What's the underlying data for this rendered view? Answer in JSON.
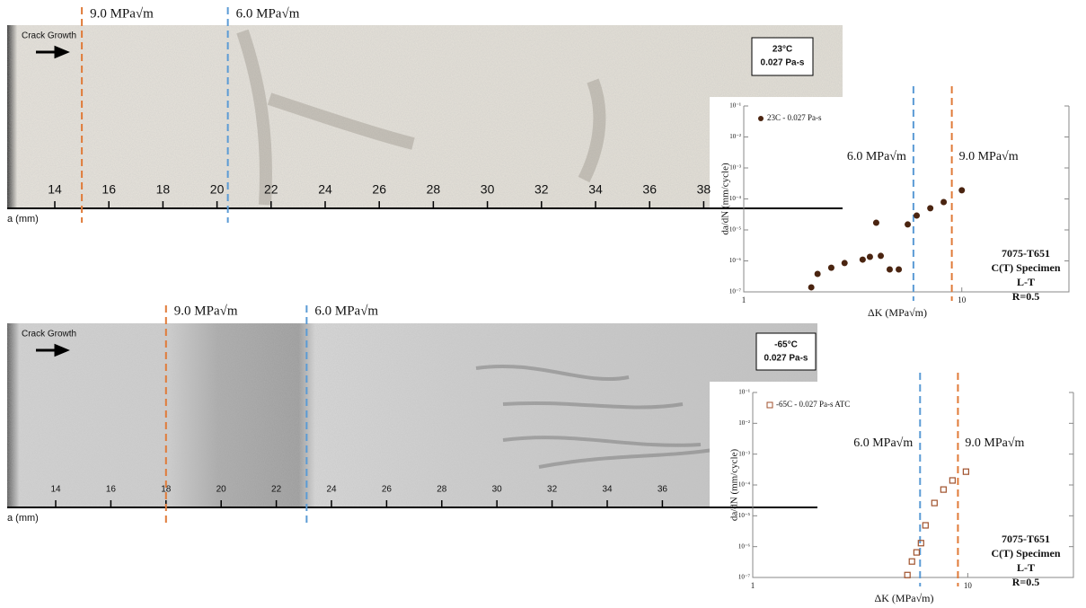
{
  "panels": [
    {
      "crack_label": "Crack Growth",
      "axis_label": "a (mm)",
      "ticks": [
        14,
        16,
        18,
        20,
        22,
        24,
        26,
        28,
        30,
        32,
        34,
        36,
        38
      ],
      "markers": [
        {
          "label": "9.0 MPa√m",
          "a": 15.0,
          "color": "#e07b39"
        },
        {
          "label": "6.0 MPa√m",
          "a": 20.4,
          "color": "#5b9bd5"
        }
      ],
      "condition": [
        "23°C",
        "0.027 Pa-s"
      ]
    },
    {
      "crack_label": "Crack Growth",
      "axis_label": "a (mm)",
      "ticks": [
        14,
        16,
        18,
        20,
        22,
        24,
        26,
        28,
        30,
        32,
        34,
        36
      ],
      "markers": [
        {
          "label": "9.0 MPa√m",
          "a": 18.0,
          "color": "#e07b39"
        },
        {
          "label": "6.0 MPa√m",
          "a": 23.1,
          "color": "#5b9bd5"
        }
      ],
      "condition": [
        "-65°C",
        "0.027 Pa-s"
      ]
    }
  ],
  "chart_data": [
    {
      "type": "scatter",
      "xlabel": "ΔK (MPa√m)",
      "ylabel": "da/dN (mm/cycle)",
      "xlog": true,
      "ylog": true,
      "x": [
        2.04,
        2.18,
        2.52,
        2.9,
        3.51,
        3.79,
        4.05,
        4.25,
        4.67,
        5.14,
        5.65,
        6.21,
        7.17,
        8.26,
        10.0
      ],
      "series": [
        {
          "name": "23C - 0.027 Pa-s",
          "color": "#4a2410",
          "marker": "circle",
          "values": [
            1.4e-07,
            3.8e-07,
            6e-07,
            8.5e-07,
            1.1e-06,
            1.35e-06,
            1.7e-05,
            1.45e-06,
            5.3e-07,
            5.3e-07,
            1.5e-05,
            2.9e-05,
            5e-05,
            7.9e-05,
            0.00019
          ]
        }
      ],
      "xlim": [
        1,
        31
      ],
      "ylim": [
        1e-07,
        0.1
      ],
      "xticks": [
        1,
        10
      ],
      "yticks": [
        {
          "value": 1e-07,
          "label": "10⁻⁷"
        },
        {
          "value": 1e-06,
          "label": "10⁻⁶"
        },
        {
          "value": 1e-05,
          "label": "10⁻⁵"
        },
        {
          "value": 0.0001,
          "label": "10⁻⁴"
        },
        {
          "value": 0.001,
          "label": "10⁻³"
        },
        {
          "value": 0.01,
          "label": "10⁻²"
        },
        {
          "value": 0.1,
          "label": "10⁻¹"
        }
      ],
      "vlines": [
        {
          "value": 6.0,
          "label": "6.0 MPa√m",
          "color": "#5b9bd5"
        },
        {
          "value": 9.0,
          "label": "9.0 MPa√m",
          "color": "#e07b39"
        }
      ],
      "notes": [
        "7075-T651",
        "C(T) Specimen",
        "L-T",
        "R=0.5"
      ]
    },
    {
      "type": "scatter",
      "xlabel": "ΔK (MPa√m)",
      "ylabel": "da/dN (mm/cycle)",
      "xlog": true,
      "ylog": true,
      "x": [
        5.24,
        5.5,
        5.78,
        6.06,
        6.36,
        7.0,
        7.71,
        8.49,
        9.81
      ],
      "series": [
        {
          "name": "-65C - 0.027 Pa-s ATC",
          "color": "#a0522d",
          "marker": "square",
          "values": [
            1.2e-07,
            3.3e-07,
            6.5e-07,
            1.3e-06,
            4.9e-06,
            2.6e-05,
            7.1e-05,
            0.00014,
            0.00027
          ]
        }
      ],
      "xlim": [
        1,
        31
      ],
      "ylim": [
        1e-07,
        0.1
      ],
      "xticks": [
        1,
        10
      ],
      "yticks": [
        {
          "value": 1e-07,
          "label": "10⁻⁷"
        },
        {
          "value": 1e-06,
          "label": "10⁻⁶"
        },
        {
          "value": 1e-05,
          "label": "10⁻⁵"
        },
        {
          "value": 0.0001,
          "label": "10⁻⁴"
        },
        {
          "value": 0.001,
          "label": "10⁻³"
        },
        {
          "value": 0.01,
          "label": "10⁻²"
        },
        {
          "value": 0.1,
          "label": "10⁻¹"
        }
      ],
      "vlines": [
        {
          "value": 6.0,
          "label": "6.0 MPa√m",
          "color": "#5b9bd5"
        },
        {
          "value": 9.0,
          "label": "9.0 MPa√m",
          "color": "#e07b39"
        }
      ],
      "notes": [
        "7075-T651",
        "C(T) Specimen",
        "L-T",
        "R=0.5"
      ]
    }
  ]
}
